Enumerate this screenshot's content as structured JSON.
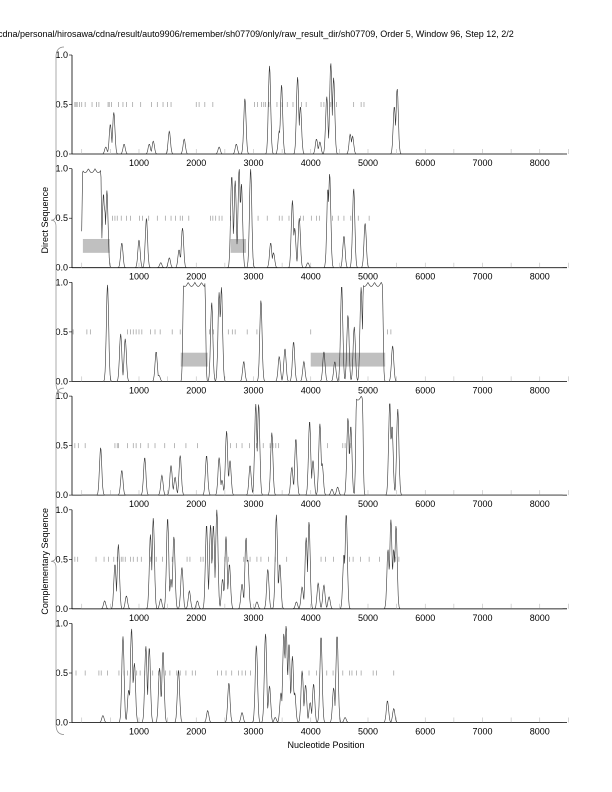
{
  "title": "cdna/personal/hirosawa/cdna/result/auto9906/remember/sh07709/only/raw_result_dir/sh07709, Order 5, Window 96, Step 12, 2/2",
  "chart_data": {
    "type": "line",
    "xlabel": "Nucleotide Position",
    "xlim": [
      -170,
      8476
    ],
    "ylim": [
      0,
      1
    ],
    "x_ticks": [
      1000,
      2000,
      3000,
      4000,
      5000,
      6000,
      7000,
      8000
    ],
    "x_tick_labels": [
      "1000",
      "2000",
      "3000",
      "4000",
      "5000",
      "6000",
      "7000",
      "8000"
    ],
    "y_ticks": [
      0,
      0.5,
      1
    ],
    "y_tick_labels": [
      "0.0",
      "0.5",
      "1.0"
    ],
    "groups": [
      {
        "label": "Direct Sequence",
        "panels": [
          0,
          1,
          2
        ]
      },
      {
        "label": "Complementary Sequence",
        "panels": [
          3,
          4,
          5
        ]
      }
    ],
    "colors": {
      "line": "#333333",
      "marker": "#9a9a9a",
      "box": "#c0c0c0"
    },
    "panels": [
      {
        "peaks": [
          [
            420,
            0.07
          ],
          [
            500,
            0.3
          ],
          [
            560,
            0.42
          ],
          [
            740,
            0.1
          ],
          [
            1180,
            0.1
          ],
          [
            1250,
            0.13
          ],
          [
            1530,
            0.23
          ],
          [
            1790,
            0.15
          ],
          [
            2400,
            0.07
          ],
          [
            2700,
            0.1
          ],
          [
            2850,
            0.56
          ],
          [
            3280,
            0.89
          ],
          [
            3450,
            0.23
          ],
          [
            3490,
            0.7
          ],
          [
            3770,
            0.78
          ],
          [
            3820,
            0.48
          ],
          [
            4100,
            0.15
          ],
          [
            4160,
            0.12
          ],
          [
            4280,
            0.58
          ],
          [
            4350,
            0.92
          ],
          [
            4400,
            0.77
          ],
          [
            4690,
            0.2
          ],
          [
            4730,
            0.18
          ],
          [
            5460,
            0.48
          ],
          [
            5510,
            0.66
          ]
        ],
        "plateaus": [],
        "boxes": [],
        "stops": [
          -120,
          -100,
          -80,
          -40,
          0,
          60,
          180,
          260,
          300,
          460,
          480,
          520,
          640,
          720,
          780,
          890,
          1030,
          1220,
          1320,
          1420,
          1500,
          1560,
          2000,
          2050,
          2150,
          2290,
          3020,
          3070,
          3140,
          3180,
          3210,
          3270,
          3410,
          3500,
          3590,
          3690,
          3840,
          3920,
          4180,
          4230,
          4350,
          4450,
          4750,
          4880,
          4930
        ]
      },
      {
        "peaks": [
          [
            380,
            0.75
          ],
          [
            400,
            0.6
          ],
          [
            440,
            0.78
          ],
          [
            700,
            0.25
          ],
          [
            1000,
            0.28
          ],
          [
            1130,
            0.5
          ],
          [
            1380,
            0.05
          ],
          [
            1530,
            0.1
          ],
          [
            1700,
            0.18
          ],
          [
            1760,
            0.4
          ],
          [
            2620,
            0.93
          ],
          [
            2680,
            0.88
          ],
          [
            2750,
            1.0
          ],
          [
            2790,
            0.85
          ],
          [
            2950,
            1.0
          ],
          [
            3300,
            0.25
          ],
          [
            3350,
            0.15
          ],
          [
            3680,
            0.68
          ],
          [
            3720,
            0.4
          ],
          [
            3800,
            0.5
          ],
          [
            3950,
            0.05
          ],
          [
            4300,
            0.8
          ],
          [
            4330,
            0.95
          ],
          [
            4580,
            0.32
          ],
          [
            4750,
            0.8
          ],
          [
            4950,
            0.45
          ]
        ],
        "plateaus": [
          [
            20,
            330,
            1.0
          ]
        ],
        "boxes": [
          [
            20,
            490,
            0.15,
            0.29
          ],
          [
            2600,
            2870,
            0.15,
            0.29
          ]
        ],
        "stops": [
          540,
          580,
          620,
          690,
          780,
          850,
          1010,
          1060,
          1170,
          1320,
          1460,
          1560,
          1640,
          1720,
          1760,
          1870,
          2250,
          2290,
          2340,
          2400,
          2450,
          2600,
          3080,
          3240,
          3450,
          3500,
          3620,
          3820,
          3870,
          4010,
          4100,
          4150,
          4380,
          4480,
          4580,
          4700,
          4830,
          5020
        ]
      },
      {
        "peaks": [
          [
            450,
            0.98
          ],
          [
            680,
            0.48
          ],
          [
            760,
            0.43
          ],
          [
            1300,
            0.3
          ],
          [
            1350,
            0.06
          ],
          [
            2270,
            0.8
          ],
          [
            2400,
            0.9
          ],
          [
            2440,
            0.95
          ],
          [
            2830,
            0.2
          ],
          [
            3130,
            0.82
          ],
          [
            3450,
            0.25
          ],
          [
            3550,
            0.33
          ],
          [
            3700,
            0.4
          ],
          [
            3880,
            0.2
          ],
          [
            4230,
            0.3
          ],
          [
            4420,
            0.2
          ],
          [
            4540,
            0.97
          ],
          [
            4650,
            0.67
          ],
          [
            4760,
            0.55
          ],
          [
            4880,
            0.95
          ],
          [
            5430,
            0.36
          ]
        ],
        "plateaus": [
          [
            1780,
            2150,
            1.0
          ],
          [
            4920,
            5250,
            1.0
          ]
        ],
        "boxes": [
          [
            1730,
            2200,
            0.15,
            0.29
          ],
          [
            4000,
            5300,
            0.15,
            0.29
          ]
        ],
        "stops": [
          -150,
          90,
          150,
          800,
          850,
          900,
          950,
          1000,
          1050,
          1200,
          1280,
          1370,
          1580,
          1720,
          2230,
          2300,
          2560,
          2630,
          2680,
          2890,
          3060,
          4000,
          5340,
          5400
        ]
      },
      {
        "peaks": [
          [
            330,
            0.48
          ],
          [
            700,
            0.25
          ],
          [
            1100,
            0.38
          ],
          [
            1400,
            0.2
          ],
          [
            1560,
            0.3
          ],
          [
            1630,
            0.18
          ],
          [
            1720,
            0.4
          ],
          [
            2180,
            0.4
          ],
          [
            2400,
            0.38
          ],
          [
            2450,
            0.15
          ],
          [
            2530,
            0.65
          ],
          [
            2590,
            0.35
          ],
          [
            2940,
            0.3
          ],
          [
            3040,
            0.92
          ],
          [
            3090,
            0.92
          ],
          [
            3320,
            0.63
          ],
          [
            3670,
            0.28
          ],
          [
            3740,
            0.57
          ],
          [
            3980,
            0.75
          ],
          [
            4040,
            0.35
          ],
          [
            4160,
            0.72
          ],
          [
            4200,
            0.32
          ],
          [
            4370,
            0.06
          ],
          [
            4470,
            0.08
          ],
          [
            4650,
            0.78
          ],
          [
            4700,
            0.7
          ],
          [
            5380,
            0.94
          ],
          [
            5420,
            0.7
          ],
          [
            5520,
            0.87
          ]
        ],
        "plateaus": [
          [
            4800,
            4900,
            1.0
          ]
        ],
        "boxes": [],
        "stops": [
          -120,
          -60,
          60,
          580,
          620,
          640,
          800,
          900,
          950,
          1030,
          1160,
          1280,
          1450,
          1620,
          1820,
          2020,
          2600,
          2700,
          2800,
          2930,
          3050,
          3170,
          3290,
          3340,
          3390,
          3440,
          4290,
          4560,
          4600,
          4690
        ]
      },
      {
        "peaks": [
          [
            400,
            0.08
          ],
          [
            580,
            0.45
          ],
          [
            640,
            0.65
          ],
          [
            780,
            0.13
          ],
          [
            1200,
            0.75
          ],
          [
            1250,
            0.92
          ],
          [
            1380,
            0.1
          ],
          [
            1500,
            0.92
          ],
          [
            1560,
            0.3
          ],
          [
            1610,
            0.73
          ],
          [
            1750,
            0.42
          ],
          [
            1880,
            0.18
          ],
          [
            2020,
            0.08
          ],
          [
            2180,
            0.85
          ],
          [
            2250,
            0.85
          ],
          [
            2300,
            0.85
          ],
          [
            2360,
            1.0
          ],
          [
            2460,
            0.3
          ],
          [
            2520,
            0.73
          ],
          [
            2580,
            0.45
          ],
          [
            2800,
            0.25
          ],
          [
            2870,
            0.72
          ],
          [
            2900,
            0.5
          ],
          [
            3060,
            0.07
          ],
          [
            3250,
            0.4
          ],
          [
            3400,
            0.95
          ],
          [
            3460,
            0.45
          ],
          [
            3750,
            0.07
          ],
          [
            3850,
            0.22
          ],
          [
            3920,
            0.72
          ],
          [
            3970,
            0.88
          ],
          [
            4130,
            0.26
          ],
          [
            4230,
            0.24
          ],
          [
            4320,
            0.12
          ],
          [
            4580,
            0.55
          ],
          [
            4620,
            0.96
          ],
          [
            5350,
            0.6
          ],
          [
            5400,
            0.9
          ],
          [
            5450,
            0.6
          ],
          [
            5490,
            0.84
          ]
        ],
        "plateaus": [],
        "boxes": [],
        "stops": [
          -120,
          -70,
          250,
          390,
          470,
          560,
          620,
          690,
          720,
          760,
          850,
          900,
          970,
          1040,
          1200,
          1300,
          1410,
          1580,
          1840,
          1890,
          2080,
          2120,
          2500,
          2560,
          2830,
          2940,
          3060,
          3130,
          3260,
          3380,
          3580,
          4180,
          4260,
          4400,
          4680,
          4740,
          4870,
          5020,
          5200,
          5480,
          5540
        ]
      },
      {
        "peaks": [
          [
            370,
            0.07
          ],
          [
            720,
            0.87
          ],
          [
            820,
            0.33
          ],
          [
            870,
            0.95
          ],
          [
            920,
            0.6
          ],
          [
            1120,
            0.77
          ],
          [
            1180,
            0.76
          ],
          [
            1360,
            0.55
          ],
          [
            1420,
            0.72
          ],
          [
            1690,
            0.53
          ],
          [
            2200,
            0.12
          ],
          [
            2570,
            0.4
          ],
          [
            2800,
            0.1
          ],
          [
            3050,
            0.78
          ],
          [
            3210,
            0.9
          ],
          [
            3280,
            0.37
          ],
          [
            3380,
            0.05
          ],
          [
            3480,
            0.3
          ],
          [
            3530,
            0.9
          ],
          [
            3570,
            0.98
          ],
          [
            3620,
            0.8
          ],
          [
            3680,
            0.67
          ],
          [
            3720,
            0.3
          ],
          [
            3850,
            0.52
          ],
          [
            3910,
            0.38
          ],
          [
            3990,
            0.2
          ],
          [
            4050,
            0.39
          ],
          [
            4180,
            0.87
          ],
          [
            4400,
            0.35
          ],
          [
            4460,
            0.88
          ],
          [
            4600,
            0.05
          ],
          [
            5340,
            0.22
          ],
          [
            5450,
            0.14
          ]
        ],
        "plateaus": [],
        "boxes": [],
        "stops": [
          -100,
          60,
          300,
          340,
          450,
          650,
          740,
          800,
          960,
          1020,
          1100,
          1240,
          1340,
          1460,
          1540,
          1660,
          1720,
          1820,
          1930,
          1990,
          2370,
          2440,
          2520,
          2620,
          2740,
          2800,
          2860,
          2950,
          3850,
          3970,
          4100,
          4280,
          4390,
          4560,
          4680,
          4720,
          4800,
          4880,
          5090,
          5150,
          5450
        ]
      }
    ]
  }
}
